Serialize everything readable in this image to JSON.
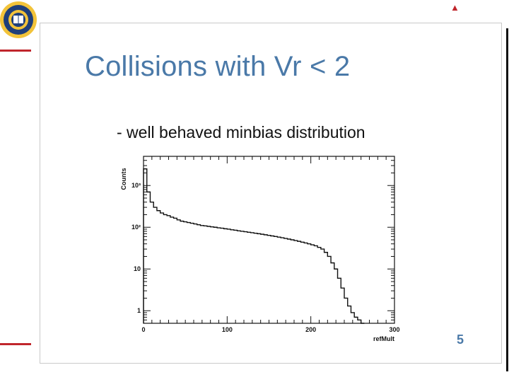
{
  "slide": {
    "title": "Collisions with Vr < 2",
    "subtitle": "- well behaved minbias distribution",
    "page_number": "5",
    "nav_marker": "▲",
    "accent_color": "#c0262c",
    "title_color": "#4a79a8"
  },
  "logo": {
    "icon": "university-seal-icon"
  },
  "chart_data": {
    "type": "line",
    "style": "step-histogram",
    "xlabel": "refMult",
    "ylabel": "Counts",
    "xlim": [
      0,
      300
    ],
    "ylim": [
      0.5,
      5000
    ],
    "yscale": "log",
    "x_ticks": [
      {
        "value": 0,
        "label": "0"
      },
      {
        "value": 100,
        "label": "100"
      },
      {
        "value": 200,
        "label": "200"
      },
      {
        "value": 300,
        "label": "300"
      }
    ],
    "y_ticks": [
      {
        "value": 1,
        "label": "1"
      },
      {
        "value": 10,
        "label": "10"
      },
      {
        "value": 100,
        "label": "10²"
      },
      {
        "value": 1000,
        "label": "10³"
      }
    ],
    "grid": false,
    "bin_width": 4,
    "x": [
      0,
      4,
      8,
      12,
      16,
      20,
      24,
      28,
      32,
      36,
      40,
      44,
      48,
      52,
      56,
      60,
      64,
      68,
      72,
      76,
      80,
      84,
      88,
      92,
      96,
      100,
      104,
      108,
      112,
      116,
      120,
      124,
      128,
      132,
      136,
      140,
      144,
      148,
      152,
      156,
      160,
      164,
      168,
      172,
      176,
      180,
      184,
      188,
      192,
      196,
      200,
      204,
      208,
      212,
      216,
      220,
      224,
      228,
      232,
      236,
      240,
      244,
      248,
      252,
      256,
      260
    ],
    "values": [
      2500,
      700,
      400,
      300,
      250,
      220,
      200,
      190,
      175,
      165,
      150,
      140,
      135,
      130,
      125,
      120,
      115,
      110,
      108,
      105,
      102,
      100,
      97,
      95,
      92,
      90,
      87,
      85,
      82,
      80,
      78,
      76,
      74,
      72,
      70,
      68,
      66,
      64,
      62,
      60,
      58,
      56,
      54,
      52,
      50,
      48,
      46,
      44,
      42,
      40,
      38,
      36,
      33,
      30,
      25,
      20,
      14,
      10,
      6,
      3.5,
      2,
      1.3,
      0.9,
      0.7,
      0.6,
      0.5
    ]
  }
}
